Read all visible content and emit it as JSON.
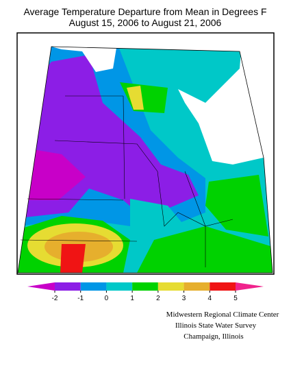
{
  "title": [
    "Average Temperature Departure from Mean in Degrees F",
    "August 15, 2006 to August 21, 2006"
  ],
  "legend": {
    "ticks": [
      -2,
      -1,
      0,
      1,
      2,
      3,
      4,
      5
    ],
    "colors": [
      "#c800c8",
      "#8c1ee6",
      "#0096e6",
      "#00c8c8",
      "#00d200",
      "#e6dc32",
      "#e6af2d",
      "#f01414",
      "#f0238c"
    ]
  },
  "credits": [
    "Midwestern Regional Climate Center",
    "Illinois State Water Survey",
    "Champaign, Illinois"
  ]
}
